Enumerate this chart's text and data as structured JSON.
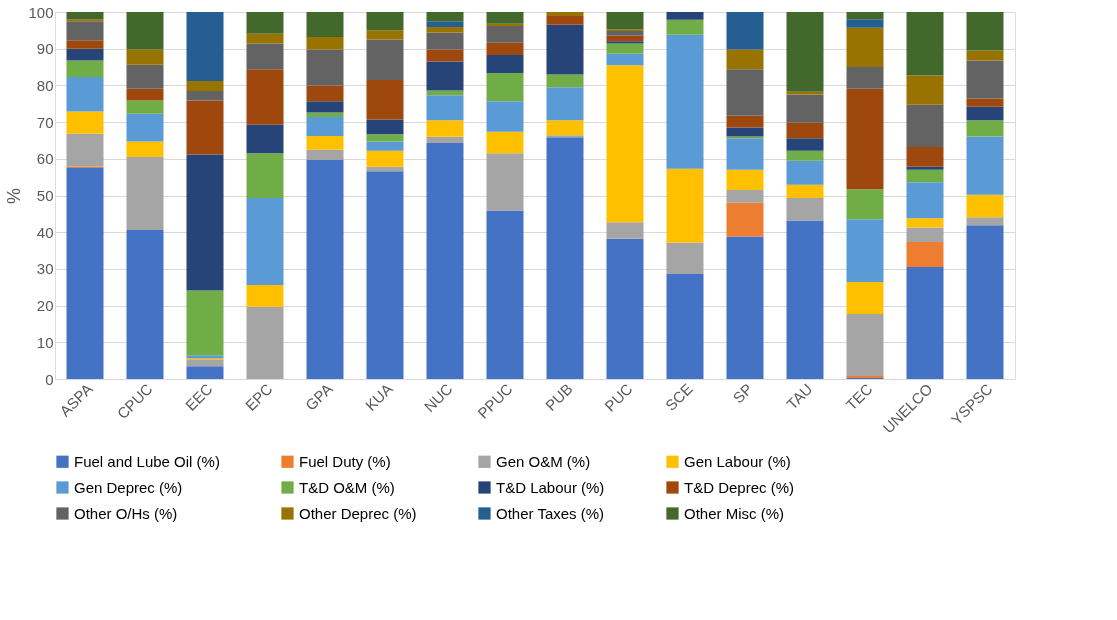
{
  "chart_data": {
    "type": "bar",
    "stacked": true,
    "ylabel": "%",
    "ylim": [
      0,
      100
    ],
    "yticks": [
      0,
      10,
      20,
      30,
      40,
      50,
      60,
      70,
      80,
      90,
      100
    ],
    "grid": "y",
    "legend": "bottom",
    "categories": [
      "ASPA",
      "CPUC",
      "EEC",
      "EPC",
      "GPA",
      "KUA",
      "NUC",
      "PPUC",
      "PUB",
      "PUC",
      "SCE",
      "SP",
      "TAU",
      "TEC",
      "UNELCO",
      "YSPSC"
    ],
    "series": [
      {
        "name": "Fuel and Lube Oil (%)",
        "color": "#4472c4",
        "values": [
          57.5,
          40.6,
          3.5,
          0,
          59.7,
          56.6,
          64.3,
          45.9,
          65.9,
          38.2,
          28.6,
          38.8,
          43.2,
          0.3,
          30.5,
          41.9
        ]
      },
      {
        "name": "Fuel Duty (%)",
        "color": "#ed7d31",
        "values": [
          0.3,
          0,
          0,
          0,
          0,
          0,
          0,
          0,
          0,
          0,
          0,
          9.2,
          0,
          0.5,
          6.8,
          0
        ]
      },
      {
        "name": "Gen O&M (%)",
        "color": "#a5a5a5",
        "values": [
          9,
          19.9,
          1.7,
          19.7,
          2.8,
          1.2,
          1.7,
          15.6,
          0.5,
          4.5,
          8.6,
          3.5,
          6.1,
          16.9,
          4,
          2.2
        ]
      },
      {
        "name": "Gen Labour (%)",
        "color": "#ffc000",
        "values": [
          6.1,
          4.2,
          0.4,
          5.9,
          3.7,
          4.4,
          4.5,
          5.9,
          4.1,
          42.8,
          20.1,
          5.5,
          3.6,
          8.7,
          2.5,
          6.1
        ]
      },
      {
        "name": "Gen Deprec (%)",
        "color": "#5b9bd5",
        "values": [
          9.4,
          7.6,
          0.9,
          23.7,
          5.2,
          2.5,
          6.8,
          8.3,
          9,
          3.1,
          36.5,
          8.6,
          6.6,
          17.1,
          9.8,
          15.9
        ]
      },
      {
        "name": "T&D O&M (%)",
        "color": "#70ad47",
        "values": [
          4.5,
          3.6,
          17.6,
          12.2,
          1.2,
          2,
          1.3,
          7.7,
          3.5,
          2.8,
          4.1,
          0.5,
          2.7,
          8.2,
          3.4,
          4.4
        ]
      },
      {
        "name": "T&D Labour (%)",
        "color": "#264478",
        "values": [
          3.2,
          0,
          37.1,
          7.8,
          3.1,
          4,
          7.9,
          4.9,
          13.5,
          0.6,
          2.1,
          2.4,
          3.4,
          0,
          0.8,
          3.7
        ]
      },
      {
        "name": "T&D Deprec (%)",
        "color": "#9e480e",
        "values": [
          2.3,
          3.2,
          14.7,
          15.1,
          4.3,
          10.8,
          3.3,
          3.3,
          2.4,
          1.5,
          0,
          3.2,
          4.2,
          27.4,
          5.4,
          2.2
        ]
      },
      {
        "name": "Other O/Hs (%)",
        "color": "#636363",
        "values": [
          5.2,
          6.5,
          2.6,
          7,
          9.8,
          11,
          4.6,
          4.6,
          0,
          1.3,
          0,
          12.7,
          7.7,
          5.9,
          11.5,
          10.4
        ]
      },
      {
        "name": "Other Deprec (%)",
        "color": "#997300",
        "values": [
          0.5,
          4.2,
          2.7,
          2.7,
          3.4,
          2.5,
          1.5,
          0.6,
          1.1,
          0.5,
          0,
          5.4,
          0.8,
          10.7,
          8,
          2.7
        ]
      },
      {
        "name": "Other Taxes (%)",
        "color": "#255e91",
        "values": [
          0,
          0,
          18.8,
          0,
          0,
          0,
          1.6,
          0,
          0,
          0,
          0,
          10.2,
          0,
          2.3,
          0,
          0
        ]
      },
      {
        "name": "Other Misc (%)",
        "color": "#43682b",
        "values": [
          2,
          10.2,
          0,
          5.9,
          6.8,
          5,
          2.5,
          3.2,
          0,
          4.7,
          0,
          0,
          21.7,
          2,
          17.3,
          10.5
        ]
      }
    ]
  }
}
